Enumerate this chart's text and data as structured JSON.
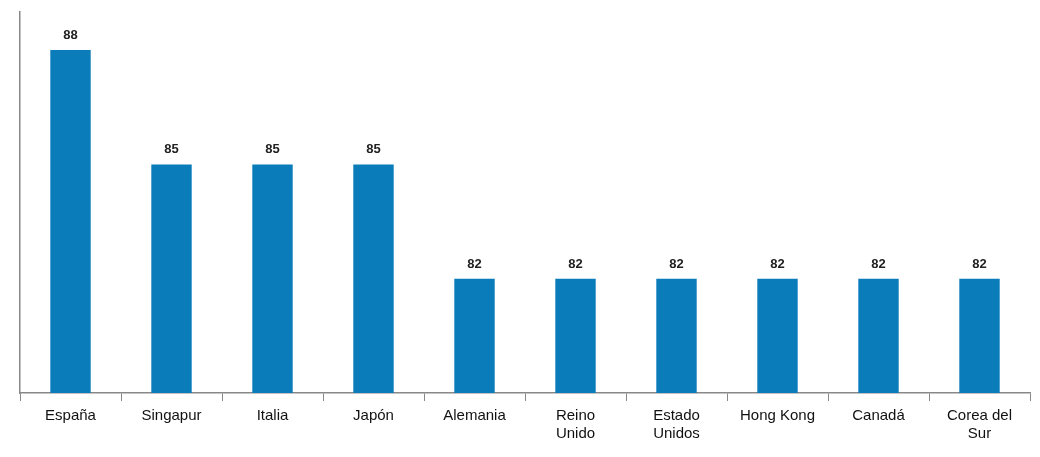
{
  "chart_data": {
    "type": "bar",
    "categories": [
      "España",
      "Singapur",
      "Italia",
      "Japón",
      "Alemania",
      "Reino Unido",
      "Estado Unidos",
      "Hong Kong",
      "Canadá",
      "Corea del Sur"
    ],
    "values": [
      88,
      85,
      85,
      85,
      82,
      82,
      82,
      82,
      82,
      82
    ],
    "color": "#0a7cba",
    "ylim": [
      79,
      89
    ],
    "data_labels": true,
    "tick_labels": "x",
    "grid": false,
    "legend": false
  }
}
